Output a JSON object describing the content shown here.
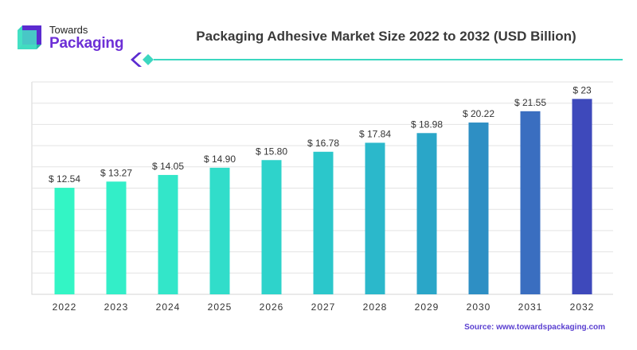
{
  "logo": {
    "line1": "Towards",
    "line2": "Packaging"
  },
  "chart_data": {
    "type": "bar",
    "title": "Packaging Adhesive Market Size 2022 to 2032 (USD Billion)",
    "categories": [
      "2022",
      "2023",
      "2024",
      "2025",
      "2026",
      "2027",
      "2028",
      "2029",
      "2030",
      "2031",
      "2032"
    ],
    "values": [
      12.54,
      13.27,
      14.05,
      14.9,
      15.8,
      16.78,
      17.84,
      18.98,
      20.22,
      21.55,
      23
    ],
    "data_labels": [
      "$ 12.54",
      "$ 13.27",
      "$ 14.05",
      "$ 14.90",
      "$ 15.80",
      "$ 16.78",
      "$ 17.84",
      "$ 18.98",
      "$ 20.22",
      "$ 21.55",
      "$ 23"
    ],
    "ylim": [
      0,
      25
    ],
    "grid": true,
    "xlabel": "",
    "ylabel": "",
    "colors": [
      "#33f5c5",
      "#33eec8",
      "#33e6c9",
      "#31ddca",
      "#2ed3cb",
      "#2bc7cb",
      "#2bb8cb",
      "#2aa6c8",
      "#2e8fc4",
      "#3a6ec0",
      "#3e49bb"
    ]
  },
  "source": "Source: www.towardspackaging.com"
}
